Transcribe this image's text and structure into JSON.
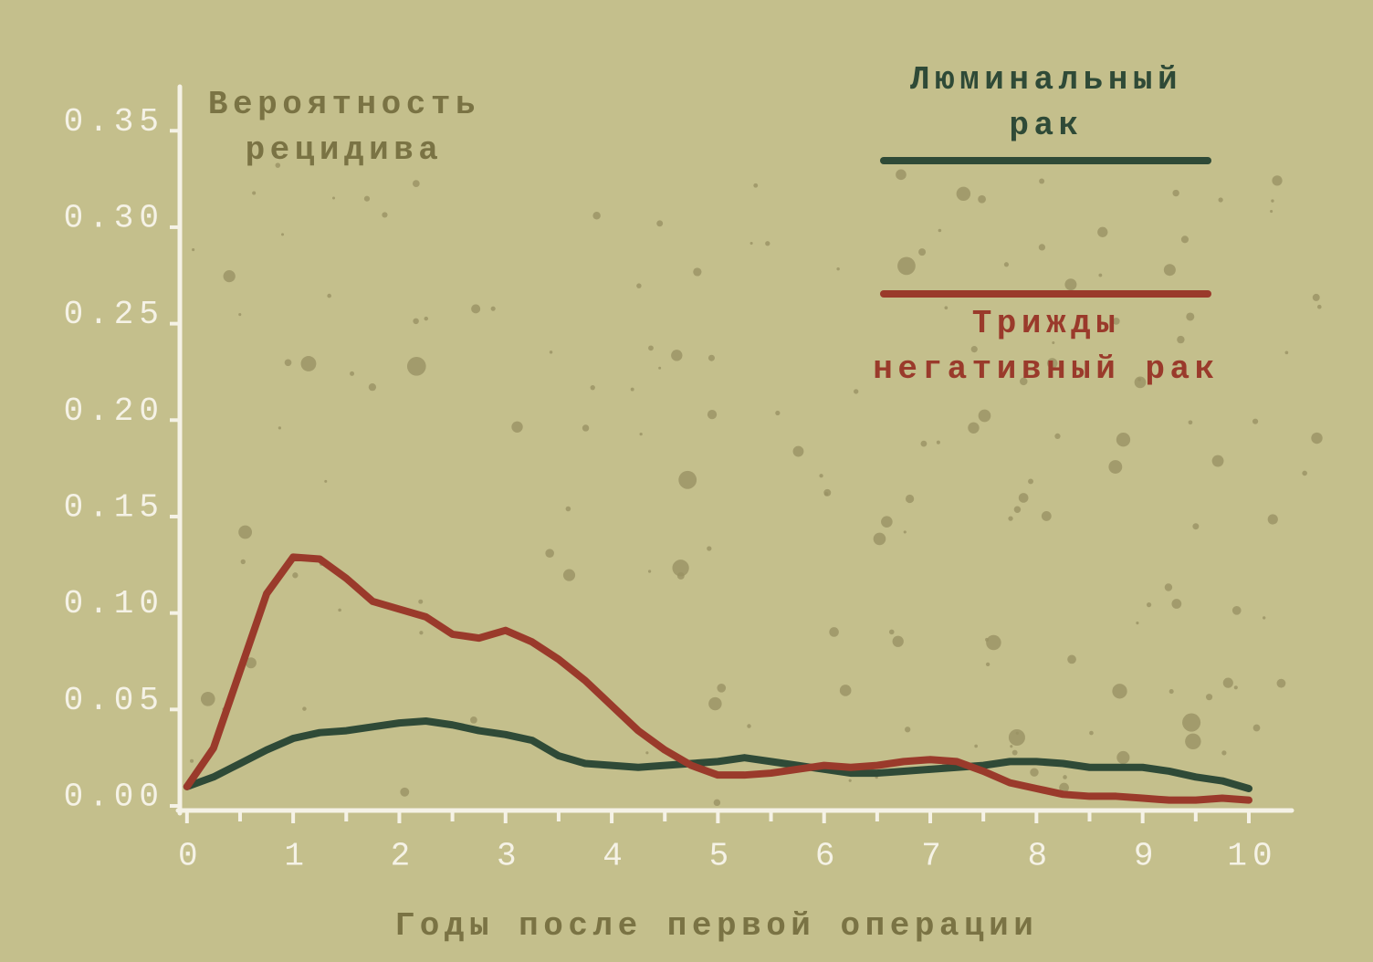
{
  "chart_data": {
    "type": "line",
    "y_label": "Вероятность рецидива",
    "x_label": "Годы после первой операции",
    "x": [
      0,
      0.25,
      0.5,
      0.75,
      1,
      1.25,
      1.5,
      1.75,
      2,
      2.25,
      2.5,
      2.75,
      3,
      3.25,
      3.5,
      3.75,
      4,
      4.25,
      4.5,
      4.75,
      5,
      5.25,
      5.5,
      5.75,
      6,
      6.25,
      6.5,
      6.75,
      7,
      7.25,
      7.5,
      7.75,
      8,
      8.25,
      8.5,
      8.75,
      9,
      9.25,
      9.5,
      9.75,
      10
    ],
    "series": [
      {
        "name": "Люминальный рак",
        "color": "#2f4a37",
        "values": [
          0.01,
          0.015,
          0.022,
          0.029,
          0.035,
          0.038,
          0.039,
          0.041,
          0.043,
          0.044,
          0.042,
          0.039,
          0.037,
          0.034,
          0.026,
          0.022,
          0.021,
          0.02,
          0.021,
          0.022,
          0.023,
          0.025,
          0.023,
          0.021,
          0.019,
          0.017,
          0.017,
          0.018,
          0.019,
          0.02,
          0.021,
          0.023,
          0.023,
          0.022,
          0.02,
          0.02,
          0.02,
          0.018,
          0.015,
          0.013,
          0.009
        ]
      },
      {
        "name": "Трижды негативный рак",
        "color": "#9a3a2b",
        "values": [
          0.01,
          0.03,
          0.07,
          0.11,
          0.129,
          0.128,
          0.118,
          0.106,
          0.102,
          0.098,
          0.089,
          0.087,
          0.091,
          0.085,
          0.076,
          0.065,
          0.052,
          0.039,
          0.029,
          0.021,
          0.016,
          0.016,
          0.017,
          0.019,
          0.021,
          0.02,
          0.021,
          0.023,
          0.024,
          0.023,
          0.018,
          0.012,
          0.009,
          0.006,
          0.005,
          0.005,
          0.004,
          0.003,
          0.003,
          0.004,
          0.003
        ]
      }
    ],
    "xlim": [
      -0.05,
      10.4
    ],
    "ylim": [
      0,
      0.37
    ],
    "xticks": [
      0,
      1,
      2,
      3,
      4,
      5,
      6,
      7,
      8,
      9,
      10
    ],
    "yticks": [
      {
        "value": 0,
        "label": "0.00"
      },
      0.05,
      {
        "value": 0.1,
        "label": "0.10"
      },
      0.15,
      {
        "value": 0.2,
        "label": "0.20"
      },
      0.25,
      {
        "value": 0.3,
        "label": "0.30"
      },
      0.35
    ],
    "grid": false
  }
}
